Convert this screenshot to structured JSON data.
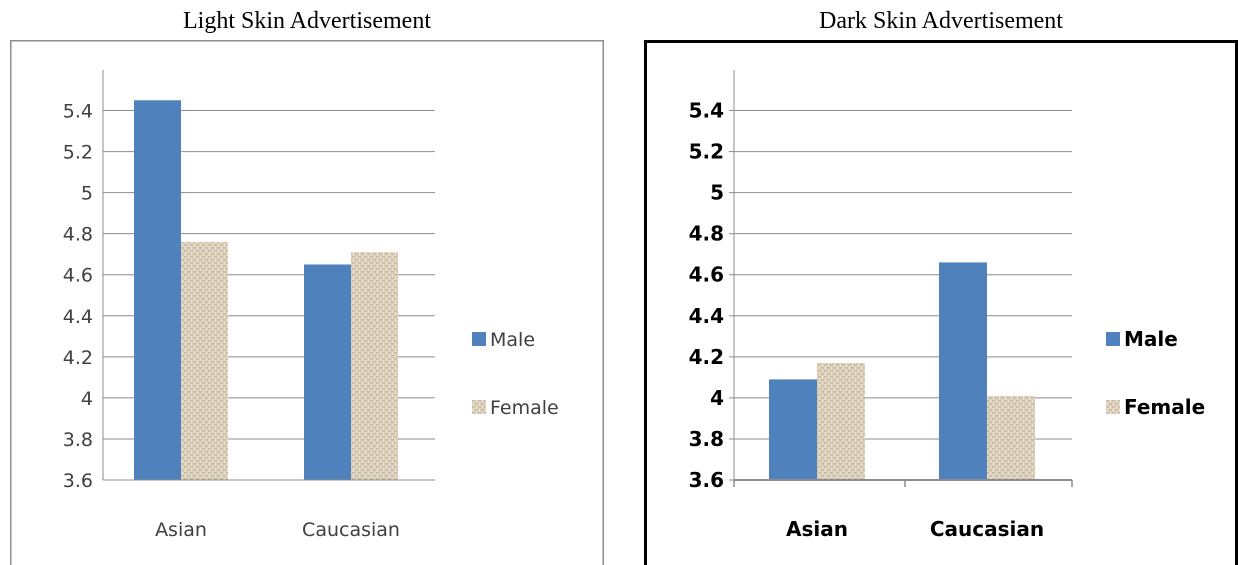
{
  "chart_data": [
    {
      "type": "bar",
      "title": "Light Skin Advertisement",
      "categories": [
        "Asian",
        "Caucasian"
      ],
      "series": [
        {
          "name": "Male",
          "values": [
            5.45,
            4.65
          ]
        },
        {
          "name": "Female",
          "values": [
            4.76,
            4.71
          ]
        }
      ],
      "yticks": [
        "3.6",
        "3.8",
        "4",
        "4.2",
        "4.4",
        "4.6",
        "4.8",
        "5",
        "5.2",
        "5.4"
      ],
      "ylim": [
        3.6,
        5.5
      ],
      "grid": true,
      "legend_position": "right"
    },
    {
      "type": "bar",
      "title": "Dark Skin Advertisement",
      "categories": [
        "Asian",
        "Caucasian"
      ],
      "series": [
        {
          "name": "Male",
          "values": [
            4.09,
            4.66
          ]
        },
        {
          "name": "Female",
          "values": [
            4.17,
            4.01
          ]
        }
      ],
      "yticks": [
        "3.6",
        "3.8",
        "4",
        "4.2",
        "4.4",
        "4.6",
        "4.8",
        "5",
        "5.2",
        "5.4"
      ],
      "ylim": [
        3.6,
        5.5
      ],
      "grid": true,
      "legend_position": "right"
    }
  ],
  "colors": {
    "male": "#4f81bd",
    "female": "#ddd0bc",
    "female_texture": "#c3b49c",
    "grid": "#8c8c8c",
    "border_left": "#8c8c8c",
    "border_right": "#000000"
  }
}
